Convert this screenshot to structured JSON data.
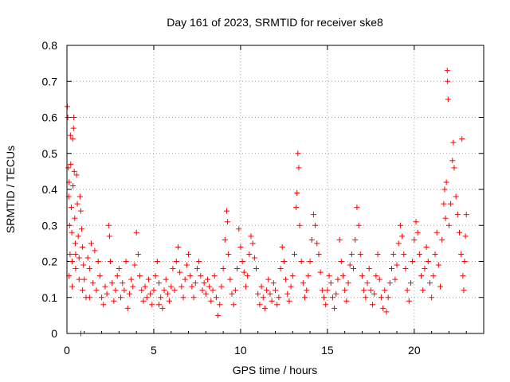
{
  "chart_data": {
    "type": "scatter",
    "title": "Day 161 of 2023, SRMTID for receiver ske8",
    "xlabel": "GPS time / hours",
    "ylabel": "SRMTID / TECUs",
    "xlim": [
      0,
      24
    ],
    "ylim": [
      0,
      0.8
    ],
    "x_ticks": [
      0,
      5,
      10,
      15,
      20
    ],
    "x_tick_labels": [
      "0",
      "5",
      "10",
      "15",
      "20"
    ],
    "y_ticks": [
      0,
      0.1,
      0.2,
      0.3,
      0.4,
      0.5,
      0.6,
      0.7,
      0.8
    ],
    "y_tick_labels": [
      "0",
      "0.1",
      "0.2",
      "0.3",
      "0.4",
      "0.5",
      "0.6",
      "0.7",
      "0.8"
    ],
    "grid": true,
    "marker": "+",
    "series": [
      {
        "name": "SRMTID",
        "color": "#ff0000",
        "points": [
          [
            0.02,
            0.63
          ],
          [
            0.05,
            0.6
          ],
          [
            0.08,
            0.46
          ],
          [
            0.1,
            0.38
          ],
          [
            0.12,
            0.42
          ],
          [
            0.15,
            0.3
          ],
          [
            0.18,
            0.22
          ],
          [
            0.2,
            0.55
          ],
          [
            0.22,
            0.47
          ],
          [
            0.25,
            0.35
          ],
          [
            0.28,
            0.28
          ],
          [
            0.3,
            0.2
          ],
          [
            0.33,
            0.54
          ],
          [
            0.35,
            0.41
          ],
          [
            0.38,
            0.57
          ],
          [
            0.4,
            0.6
          ],
          [
            0.42,
            0.45
          ],
          [
            0.45,
            0.32
          ],
          [
            0.48,
            0.25
          ],
          [
            0.5,
            0.18
          ],
          [
            0.55,
            0.44
          ],
          [
            0.6,
            0.36
          ],
          [
            0.65,
            0.27
          ],
          [
            0.7,
            0.21
          ],
          [
            0.75,
            0.38
          ],
          [
            0.8,
            0.34
          ],
          [
            0.85,
            0.29
          ],
          [
            0.9,
            0.24
          ],
          [
            0.95,
            0.19
          ],
          [
            1.0,
            0.15
          ],
          [
            0.12,
            0.16
          ],
          [
            0.3,
            0.13
          ],
          [
            0.5,
            0.22
          ],
          [
            0.7,
            0.15
          ],
          [
            0.9,
            0.12
          ],
          [
            1.1,
            0.1
          ],
          [
            1.2,
            0.21
          ],
          [
            1.3,
            0.18
          ],
          [
            1.4,
            0.25
          ],
          [
            1.5,
            0.14
          ],
          [
            1.6,
            0.23
          ],
          [
            1.7,
            0.12
          ],
          [
            1.8,
            0.2
          ],
          [
            1.9,
            0.16
          ],
          [
            2.0,
            0.1
          ],
          [
            2.1,
            0.08
          ],
          [
            2.2,
            0.13
          ],
          [
            2.3,
            0.11
          ],
          [
            2.4,
            0.3
          ],
          [
            2.45,
            0.27
          ],
          [
            2.5,
            0.2
          ],
          [
            2.6,
            0.14
          ],
          [
            2.7,
            0.09
          ],
          [
            2.8,
            0.12
          ],
          [
            2.9,
            0.16
          ],
          [
            3.0,
            0.18
          ],
          [
            3.1,
            0.1
          ],
          [
            3.2,
            0.14
          ],
          [
            3.3,
            0.12
          ],
          [
            3.4,
            0.2
          ],
          [
            3.5,
            0.07
          ],
          [
            3.6,
            0.11
          ],
          [
            3.7,
            0.15
          ],
          [
            3.8,
            0.13
          ],
          [
            3.9,
            0.19
          ],
          [
            4.0,
            0.28
          ],
          [
            4.1,
            0.22
          ],
          [
            4.2,
            0.16
          ],
          [
            4.3,
            0.12
          ],
          [
            4.4,
            0.09
          ],
          [
            4.5,
            0.13
          ],
          [
            4.6,
            0.1
          ],
          [
            4.7,
            0.15
          ],
          [
            4.8,
            0.11
          ],
          [
            4.9,
            0.08
          ],
          [
            5.0,
            0.12
          ],
          [
            5.1,
            0.16
          ],
          [
            5.2,
            0.2
          ],
          [
            5.3,
            0.14
          ],
          [
            5.4,
            0.1
          ],
          [
            5.5,
            0.07
          ],
          [
            5.6,
            0.12
          ],
          [
            5.7,
            0.15
          ],
          [
            5.8,
            0.11
          ],
          [
            5.9,
            0.09
          ],
          [
            6.0,
            0.13
          ],
          [
            6.1,
            0.18
          ],
          [
            6.2,
            0.12
          ],
          [
            6.3,
            0.2
          ],
          [
            6.4,
            0.24
          ],
          [
            6.5,
            0.17
          ],
          [
            6.6,
            0.13
          ],
          [
            6.7,
            0.1
          ],
          [
            6.8,
            0.15
          ],
          [
            6.9,
            0.19
          ],
          [
            7.0,
            0.22
          ],
          [
            7.1,
            0.16
          ],
          [
            7.2,
            0.13
          ],
          [
            7.3,
            0.1
          ],
          [
            7.4,
            0.14
          ],
          [
            7.5,
            0.18
          ],
          [
            7.6,
            0.2
          ],
          [
            7.7,
            0.16
          ],
          [
            7.8,
            0.12
          ],
          [
            7.9,
            0.14
          ],
          [
            8.0,
            0.11
          ],
          [
            8.1,
            0.15
          ],
          [
            8.2,
            0.13
          ],
          [
            8.3,
            0.09
          ],
          [
            8.4,
            0.12
          ],
          [
            8.5,
            0.16
          ],
          [
            8.6,
            0.1
          ],
          [
            8.7,
            0.05
          ],
          [
            8.8,
            0.08
          ],
          [
            8.9,
            0.13
          ],
          [
            9.0,
            0.18
          ],
          [
            9.1,
            0.26
          ],
          [
            9.2,
            0.34
          ],
          [
            9.25,
            0.31
          ],
          [
            9.3,
            0.22
          ],
          [
            9.4,
            0.15
          ],
          [
            9.5,
            0.11
          ],
          [
            9.6,
            0.08
          ],
          [
            9.7,
            0.12
          ],
          [
            9.8,
            0.18
          ],
          [
            9.9,
            0.29
          ],
          [
            10.0,
            0.24
          ],
          [
            10.1,
            0.2
          ],
          [
            10.2,
            0.17
          ],
          [
            10.3,
            0.13
          ],
          [
            10.4,
            0.16
          ],
          [
            10.5,
            0.22
          ],
          [
            10.6,
            0.27
          ],
          [
            10.7,
            0.25
          ],
          [
            10.8,
            0.21
          ],
          [
            10.9,
            0.18
          ],
          [
            11.0,
            0.11
          ],
          [
            11.1,
            0.08
          ],
          [
            11.2,
            0.13
          ],
          [
            11.3,
            0.1
          ],
          [
            11.4,
            0.07
          ],
          [
            11.5,
            0.12
          ],
          [
            11.6,
            0.15
          ],
          [
            11.7,
            0.11
          ],
          [
            11.8,
            0.09
          ],
          [
            11.9,
            0.14
          ],
          [
            12.0,
            0.12
          ],
          [
            12.1,
            0.08
          ],
          [
            12.2,
            0.1
          ],
          [
            12.3,
            0.18
          ],
          [
            12.4,
            0.24
          ],
          [
            12.5,
            0.2
          ],
          [
            12.6,
            0.15
          ],
          [
            12.7,
            0.11
          ],
          [
            12.8,
            0.09
          ],
          [
            12.9,
            0.13
          ],
          [
            13.0,
            0.16
          ],
          [
            13.1,
            0.22
          ],
          [
            13.2,
            0.35
          ],
          [
            13.25,
            0.39
          ],
          [
            13.3,
            0.5
          ],
          [
            13.35,
            0.46
          ],
          [
            13.4,
            0.3
          ],
          [
            13.5,
            0.2
          ],
          [
            13.6,
            0.14
          ],
          [
            13.7,
            0.1
          ],
          [
            13.8,
            0.12
          ],
          [
            13.9,
            0.16
          ],
          [
            14.0,
            0.2
          ],
          [
            14.1,
            0.26
          ],
          [
            14.2,
            0.33
          ],
          [
            14.3,
            0.3
          ],
          [
            14.4,
            0.25
          ],
          [
            14.5,
            0.22
          ],
          [
            14.6,
            0.17
          ],
          [
            14.7,
            0.12
          ],
          [
            14.8,
            0.1
          ],
          [
            14.9,
            0.08
          ],
          [
            15.0,
            0.12
          ],
          [
            15.1,
            0.16
          ],
          [
            15.2,
            0.14
          ],
          [
            15.3,
            0.1
          ],
          [
            15.4,
            0.07
          ],
          [
            15.5,
            0.11
          ],
          [
            15.6,
            0.15
          ],
          [
            15.7,
            0.26
          ],
          [
            15.8,
            0.2
          ],
          [
            15.9,
            0.16
          ],
          [
            16.0,
            0.12
          ],
          [
            16.1,
            0.09
          ],
          [
            16.2,
            0.14
          ],
          [
            16.3,
            0.19
          ],
          [
            16.4,
            0.22
          ],
          [
            16.5,
            0.18
          ],
          [
            16.6,
            0.26
          ],
          [
            16.7,
            0.35
          ],
          [
            16.8,
            0.3
          ],
          [
            16.9,
            0.22
          ],
          [
            17.0,
            0.16
          ],
          [
            17.1,
            0.12
          ],
          [
            17.2,
            0.1
          ],
          [
            17.3,
            0.14
          ],
          [
            17.4,
            0.18
          ],
          [
            17.5,
            0.12
          ],
          [
            17.6,
            0.08
          ],
          [
            17.7,
            0.11
          ],
          [
            17.8,
            0.16
          ],
          [
            17.9,
            0.22
          ],
          [
            18.0,
            0.15
          ],
          [
            18.1,
            0.1
          ],
          [
            18.2,
            0.07
          ],
          [
            18.3,
            0.12
          ],
          [
            18.4,
            0.06
          ],
          [
            18.5,
            0.1
          ],
          [
            18.6,
            0.14
          ],
          [
            18.7,
            0.18
          ],
          [
            18.8,
            0.22
          ],
          [
            18.9,
            0.15
          ],
          [
            19.0,
            0.19
          ],
          [
            19.1,
            0.25
          ],
          [
            19.2,
            0.3
          ],
          [
            19.3,
            0.27
          ],
          [
            19.4,
            0.22
          ],
          [
            19.5,
            0.18
          ],
          [
            19.6,
            0.12
          ],
          [
            19.7,
            0.09
          ],
          [
            19.8,
            0.14
          ],
          [
            19.9,
            0.2
          ],
          [
            20.0,
            0.26
          ],
          [
            20.1,
            0.31
          ],
          [
            20.2,
            0.28
          ],
          [
            20.3,
            0.22
          ],
          [
            20.4,
            0.16
          ],
          [
            20.5,
            0.12
          ],
          [
            20.6,
            0.18
          ],
          [
            20.7,
            0.24
          ],
          [
            20.8,
            0.2
          ],
          [
            20.9,
            0.14
          ],
          [
            21.0,
            0.1
          ],
          [
            21.1,
            0.16
          ],
          [
            21.2,
            0.22
          ],
          [
            21.3,
            0.28
          ],
          [
            21.4,
            0.19
          ],
          [
            21.5,
            0.13
          ],
          [
            21.6,
            0.26
          ],
          [
            21.7,
            0.36
          ],
          [
            21.75,
            0.4
          ],
          [
            21.8,
            0.32
          ],
          [
            21.85,
            0.42
          ],
          [
            21.9,
            0.73
          ],
          [
            21.92,
            0.7
          ],
          [
            21.95,
            0.65
          ],
          [
            22.0,
            0.3
          ],
          [
            22.1,
            0.36
          ],
          [
            22.2,
            0.48
          ],
          [
            22.25,
            0.53
          ],
          [
            22.3,
            0.46
          ],
          [
            22.4,
            0.38
          ],
          [
            22.5,
            0.33
          ],
          [
            22.6,
            0.28
          ],
          [
            22.7,
            0.22
          ],
          [
            22.75,
            0.54
          ],
          [
            22.8,
            0.16
          ],
          [
            22.85,
            0.12
          ],
          [
            22.9,
            0.2
          ],
          [
            22.95,
            0.27
          ],
          [
            23.0,
            0.33
          ],
          [
            0.8,
            0.0
          ],
          [
            1.3,
            0.1
          ],
          [
            5.3,
            0.08
          ]
        ]
      }
    ]
  }
}
